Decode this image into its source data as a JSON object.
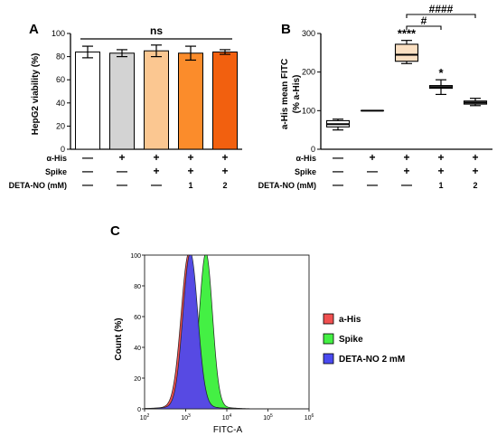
{
  "chart_data": [
    {
      "panel": "A",
      "type": "bar",
      "ylabel": "HepG2 viability (%)",
      "ylim": [
        0,
        100
      ],
      "yticks": [
        0,
        20,
        40,
        60,
        80,
        100
      ],
      "values": [
        84,
        83,
        85,
        83,
        84
      ],
      "errors": [
        5,
        3,
        5,
        6,
        2
      ],
      "colors": [
        "#ffffff",
        "#d3d3d3",
        "#fbc791",
        "#fb8c2b",
        "#f2600f"
      ],
      "significance": "ns",
      "conditions": [
        {
          "label": "α-His",
          "signs": [
            "—",
            "+",
            "+",
            "+",
            "+"
          ]
        },
        {
          "label": "Spike",
          "signs": [
            "—",
            "—",
            "+",
            "+",
            "+"
          ]
        },
        {
          "label": "DETA-NO (mM)",
          "signs": [
            "—",
            "—",
            "—",
            "1",
            "2"
          ]
        }
      ]
    },
    {
      "panel": "B",
      "type": "box",
      "ylabel": [
        "a-His mean FITC",
        "(% a-His)"
      ],
      "ylim": [
        0,
        300
      ],
      "yticks": [
        0,
        100,
        200,
        300
      ],
      "boxes": [
        {
          "min": 50,
          "q1": 58,
          "median": 65,
          "q3": 74,
          "max": 78,
          "color": "#ffffff"
        },
        {
          "min": 100,
          "q1": 100,
          "median": 100,
          "q3": 100,
          "max": 100,
          "color": "#ffffff"
        },
        {
          "min": 222,
          "q1": 228,
          "median": 245,
          "q3": 272,
          "max": 282,
          "color": "#fbe0c2"
        },
        {
          "min": 142,
          "q1": 158,
          "median": 161,
          "q3": 165,
          "max": 180,
          "color": "#ffffff"
        },
        {
          "min": 113,
          "q1": 117,
          "median": 121,
          "q3": 125,
          "max": 132,
          "color": "#ffffff"
        }
      ],
      "star_labels": [
        "",
        "",
        "****",
        "*",
        ""
      ],
      "brackets": [
        {
          "from": 2,
          "to": 3,
          "label": "#"
        },
        {
          "from": 2,
          "to": 4,
          "label": "####"
        }
      ],
      "conditions": [
        {
          "label": "α-His",
          "signs": [
            "—",
            "+",
            "+",
            "+",
            "+"
          ]
        },
        {
          "label": "Spike",
          "signs": [
            "—",
            "—",
            "+",
            "+",
            "+"
          ]
        },
        {
          "label": "DETA-NO (mM)",
          "signs": [
            "—",
            "—",
            "—",
            "1",
            "2"
          ]
        }
      ]
    },
    {
      "panel": "C",
      "type": "area",
      "xlabel": "FITC-A",
      "ylabel": "Count (%)",
      "xscale": "log",
      "xlim": [
        100,
        1000000
      ],
      "ylim": [
        0,
        100
      ],
      "yticks": [
        0,
        20,
        40,
        60,
        80,
        100
      ],
      "xtick_exponents": [
        2,
        3,
        4,
        5,
        6
      ],
      "series": [
        {
          "name": "a-His",
          "color": "#f05050",
          "peak": 1200,
          "width": 0.19
        },
        {
          "name": "Spike",
          "color": "#44f044",
          "peak": 3100,
          "width": 0.16
        },
        {
          "name": "DETA-NO 2 mM",
          "color": "#4a4af0",
          "peak": 1300,
          "width": 0.18
        }
      ]
    }
  ]
}
